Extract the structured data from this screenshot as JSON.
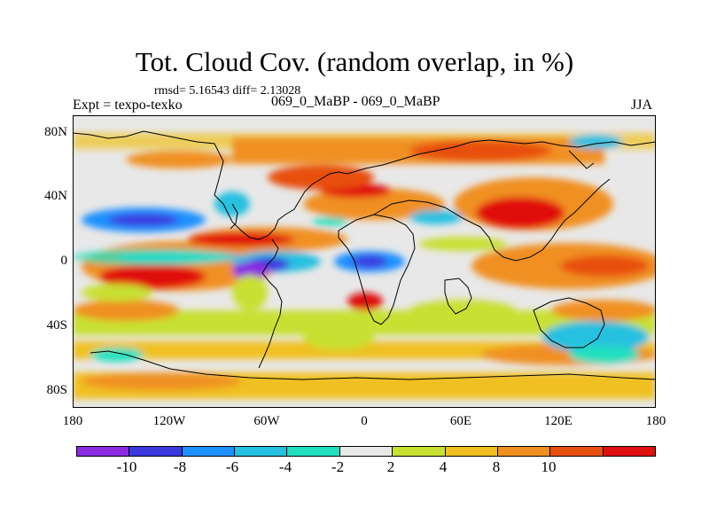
{
  "header": {
    "title": "Tot. Cloud Cov. (random overlap, in %)",
    "stats": "rmsd= 5.16543 diff= 2.13028",
    "expt": "Expt = texpo-texko",
    "comparison": "069_0_MaBP - 069_0_MaBP",
    "season": "JJA"
  },
  "axes": {
    "lat_labels": [
      "80N",
      "40N",
      "0",
      "40S",
      "80S"
    ],
    "lon_labels": [
      "180",
      "120W",
      "60W",
      "0",
      "60E",
      "120E",
      "180"
    ]
  },
  "colorbar": {
    "colors": [
      "#8a2be2",
      "#3a3adf",
      "#1e90ff",
      "#26c0e0",
      "#20e0c0",
      "#e8e8e8",
      "#c8e030",
      "#f0c020",
      "#f09020",
      "#e85010",
      "#e01010"
    ],
    "labels": [
      "-10",
      "-8",
      "-6",
      "-4",
      "-2",
      "2",
      "4",
      "8",
      "10"
    ]
  }
}
